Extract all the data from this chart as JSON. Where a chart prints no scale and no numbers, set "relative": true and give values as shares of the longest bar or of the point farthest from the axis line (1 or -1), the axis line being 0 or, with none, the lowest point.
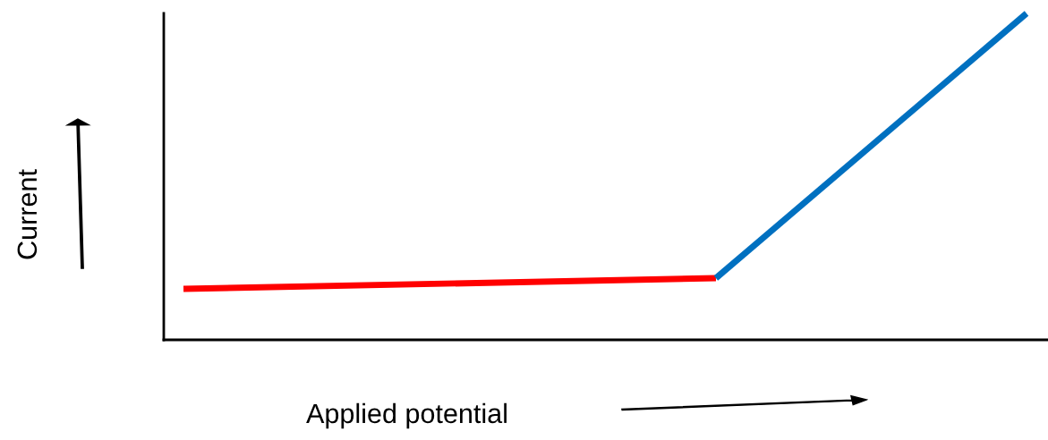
{
  "chart_data": {
    "type": "line",
    "relative": true,
    "xlabel": "Applied potential",
    "ylabel": "Current",
    "categories": [
      null,
      null,
      null,
      null,
      null,
      null,
      null,
      null,
      null,
      null,
      null,
      null,
      null,
      null,
      null,
      null,
      null,
      null,
      null,
      null
    ],
    "series": [
      {
        "color": "#ff0000",
        "values": [
          0.156,
          null,
          null,
          null,
          null,
          null,
          null,
          null,
          null,
          null,
          null,
          null,
          0.189,
          null,
          null,
          null,
          null,
          null,
          null,
          null
        ]
      },
      {
        "color": "#0070c0",
        "values": [
          null,
          null,
          null,
          null,
          null,
          null,
          null,
          null,
          null,
          null,
          null,
          null,
          0.189,
          null,
          null,
          null,
          null,
          null,
          null,
          1
        ]
      }
    ],
    "grid": false,
    "legend": false
  }
}
